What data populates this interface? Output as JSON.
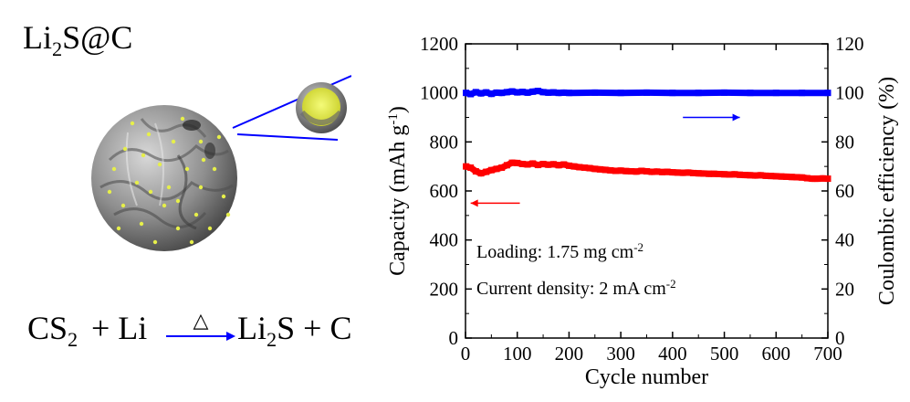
{
  "labels": {
    "compound_main": "Li",
    "compound_sub": "2",
    "compound_rest": "S@C",
    "eq_reactant1_main": "CS",
    "eq_reactant1_sub": "2",
    "eq_plus1": "+ Li",
    "eq_product_main": "Li",
    "eq_product_sub": "2",
    "eq_product_rest": "S + C",
    "heat_symbol": "△"
  },
  "colors": {
    "capacity": "#ff0000",
    "coulombic": "#0000ff",
    "axis": "#000000",
    "sphere_base": "#8a8a8a",
    "particles": "#e6ef4a",
    "callout_line": "#0000ff"
  },
  "chart_data": {
    "type": "scatter",
    "xlabel": "Cycle number",
    "ylabel_left_main": "Capacity (mAh g",
    "ylabel_left_sup": "-1",
    "ylabel_left_end": ")",
    "ylabel_right": "Coulombic efficiency (%)",
    "xlim": [
      0,
      700
    ],
    "ylim_left": [
      0,
      1200
    ],
    "ylim_right": [
      0,
      120
    ],
    "x_ticks": [
      0,
      100,
      200,
      300,
      400,
      500,
      600,
      700
    ],
    "y_ticks_left": [
      0,
      200,
      400,
      600,
      800,
      1000,
      1200
    ],
    "y_ticks_right": [
      0,
      20,
      40,
      60,
      80,
      100,
      120
    ],
    "grid": false,
    "annotations": [
      {
        "main": "Loading: 1.75 mg cm",
        "sup": "-2"
      },
      {
        "main": "Current density: 2 mA cm",
        "sup": "-2"
      }
    ],
    "series": [
      {
        "axis": "left",
        "color": "#ff0000",
        "points": [
          [
            1,
            700
          ],
          [
            10,
            695
          ],
          [
            20,
            680
          ],
          [
            30,
            672
          ],
          [
            40,
            678
          ],
          [
            50,
            685
          ],
          [
            60,
            690
          ],
          [
            70,
            695
          ],
          [
            80,
            705
          ],
          [
            90,
            715
          ],
          [
            100,
            714
          ],
          [
            110,
            710
          ],
          [
            120,
            708
          ],
          [
            130,
            712
          ],
          [
            140,
            706
          ],
          [
            150,
            710
          ],
          [
            160,
            707
          ],
          [
            170,
            709
          ],
          [
            180,
            705
          ],
          [
            190,
            708
          ],
          [
            200,
            703
          ],
          [
            210,
            700
          ],
          [
            220,
            697
          ],
          [
            230,
            695
          ],
          [
            240,
            693
          ],
          [
            250,
            690
          ],
          [
            260,
            688
          ],
          [
            270,
            686
          ],
          [
            280,
            684
          ],
          [
            290,
            682
          ],
          [
            300,
            683
          ],
          [
            310,
            681
          ],
          [
            320,
            680
          ],
          [
            330,
            679
          ],
          [
            340,
            682
          ],
          [
            350,
            680
          ],
          [
            360,
            678
          ],
          [
            370,
            679
          ],
          [
            380,
            677
          ],
          [
            390,
            678
          ],
          [
            400,
            676
          ],
          [
            410,
            675
          ],
          [
            420,
            674
          ],
          [
            430,
            675
          ],
          [
            440,
            673
          ],
          [
            450,
            672
          ],
          [
            460,
            671
          ],
          [
            470,
            670
          ],
          [
            480,
            670
          ],
          [
            490,
            669
          ],
          [
            500,
            668
          ],
          [
            510,
            667
          ],
          [
            520,
            668
          ],
          [
            530,
            666
          ],
          [
            540,
            665
          ],
          [
            550,
            664
          ],
          [
            560,
            663
          ],
          [
            570,
            664
          ],
          [
            580,
            662
          ],
          [
            590,
            661
          ],
          [
            600,
            660
          ],
          [
            610,
            659
          ],
          [
            620,
            658
          ],
          [
            630,
            657
          ],
          [
            640,
            656
          ],
          [
            650,
            655
          ],
          [
            660,
            652
          ],
          [
            670,
            650
          ],
          [
            680,
            650
          ],
          [
            690,
            651
          ],
          [
            700,
            650
          ]
        ]
      },
      {
        "axis": "right",
        "color": "#0000ff",
        "points": [
          [
            1,
            100
          ],
          [
            10,
            99.5
          ],
          [
            20,
            100.3
          ],
          [
            30,
            99.8
          ],
          [
            40,
            100.2
          ],
          [
            50,
            99.6
          ],
          [
            60,
            100.1
          ],
          [
            70,
            100.0
          ],
          [
            80,
            100.3
          ],
          [
            90,
            100.6
          ],
          [
            100,
            100.2
          ],
          [
            110,
            100.4
          ],
          [
            120,
            100.1
          ],
          [
            130,
            100.5
          ],
          [
            140,
            100.8
          ],
          [
            150,
            100.3
          ],
          [
            160,
            100.1
          ],
          [
            170,
            100.2
          ],
          [
            180,
            100.0
          ],
          [
            190,
            100.1
          ],
          [
            200,
            100.0
          ],
          [
            250,
            100.1
          ],
          [
            300,
            100.0
          ],
          [
            350,
            100.1
          ],
          [
            400,
            100.0
          ],
          [
            450,
            100.0
          ],
          [
            500,
            100.1
          ],
          [
            550,
            100.0
          ],
          [
            600,
            100.0
          ],
          [
            650,
            100.0
          ],
          [
            700,
            100.0
          ]
        ]
      }
    ],
    "arrows": [
      {
        "axis": "right",
        "color": "#0000ff",
        "from": [
          420,
          90
        ],
        "to": [
          530,
          90
        ]
      },
      {
        "axis": "left",
        "color": "#ff0000",
        "from": [
          105,
          550
        ],
        "to": [
          10,
          550
        ]
      }
    ]
  }
}
